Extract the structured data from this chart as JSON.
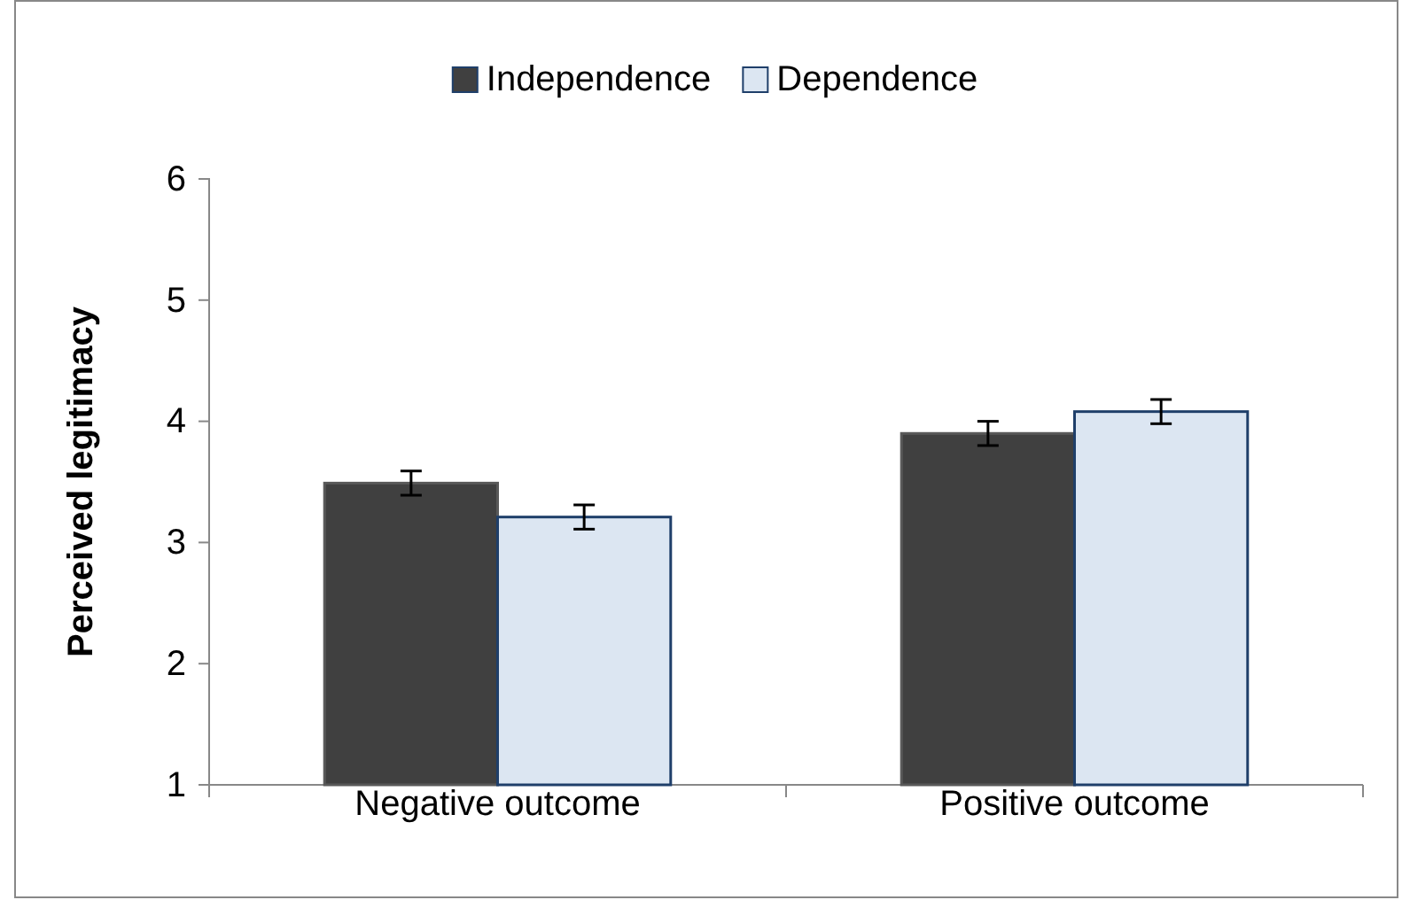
{
  "chart_data": {
    "type": "bar",
    "ylabel": "Perceived legitimacy",
    "categories": [
      "Negative outcome",
      "Positive outcome"
    ],
    "series": [
      {
        "name": "Independence",
        "color": "#404040",
        "values": [
          3.49,
          3.9
        ],
        "errors": [
          0.1,
          0.1
        ]
      },
      {
        "name": "Dependence",
        "color": "#dce6f2",
        "values": [
          3.21,
          4.08
        ],
        "errors": [
          0.1,
          0.1
        ]
      }
    ],
    "ylim": [
      1,
      6
    ],
    "yticks": [
      1,
      2,
      3,
      4,
      5,
      6
    ],
    "grid": false,
    "legend": "top"
  }
}
